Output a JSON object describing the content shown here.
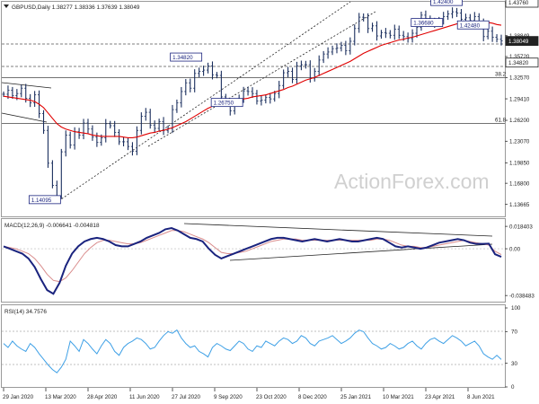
{
  "header": {
    "symbol_line": "GBPUSD,Daily  1.38277 1.38336 1.37639 1.38049"
  },
  "watermark": "ActionForex.com",
  "colors": {
    "bars": "#1b2f5e",
    "price_line": "#5f7f93",
    "ma": "#e00000",
    "macd": "#1a237e",
    "signal": "#d98c8c",
    "rsi": "#3ea0e6",
    "fib": "#444444"
  },
  "chart_data": [
    {
      "type": "line",
      "title": "GBPUSD,Daily",
      "ylim": [
        1.12,
        1.4376
      ],
      "y_ticks": [
        "1.43760",
        "1.38849",
        "1.35720",
        "1.32570",
        "1.29410",
        "1.26200",
        "1.23070",
        "1.19850",
        "1.16800",
        "1.13665"
      ],
      "current_price": "1.38049",
      "price_box_levels": [
        "1.43760",
        "1.38049",
        "1.34820"
      ],
      "x_tick_labels": [
        "29 Jan 2020",
        "13 Mar 2020",
        "28 Apr 2020",
        "11 Jun 2020",
        "27 Jul 2020",
        "9 Sep 2020",
        "23 Oct 2020",
        "8 Dec 2020",
        "25 Jan 2021",
        "10 Mar 2021",
        "23 Apr 2021",
        "8 Jun 2021"
      ],
      "annotations": [
        {
          "label": "1.42400"
        },
        {
          "label": "1.42480"
        },
        {
          "label": "1.34820"
        },
        {
          "label": "1.36680"
        },
        {
          "label": "1.26750"
        },
        {
          "label": "1.14095"
        }
      ],
      "fib_labels": [
        "38.2",
        "61.8"
      ],
      "series": [
        {
          "values": [
            1.301,
            1.307,
            1.299,
            1.302,
            1.31,
            1.295,
            1.288,
            1.3,
            1.272,
            1.247,
            1.198,
            1.165,
            1.149,
            1.215,
            1.24,
            1.225,
            1.245,
            1.24,
            1.258,
            1.249,
            1.237,
            1.229,
            1.236,
            1.257,
            1.254,
            1.244,
            1.23,
            1.23,
            1.223,
            1.216,
            1.247,
            1.268,
            1.274,
            1.255,
            1.25,
            1.26,
            1.247,
            1.25,
            1.278,
            1.288,
            1.305,
            1.318,
            1.31,
            1.332,
            1.335,
            1.337,
            1.343,
            1.33,
            1.329,
            1.297,
            1.287,
            1.276,
            1.289,
            1.294,
            1.306,
            1.305,
            1.302,
            1.291,
            1.292,
            1.296,
            1.294,
            1.302,
            1.314,
            1.333,
            1.335,
            1.323,
            1.343,
            1.345,
            1.345,
            1.325,
            1.335,
            1.352,
            1.361,
            1.364,
            1.369,
            1.37,
            1.374,
            1.366,
            1.38,
            1.399,
            1.416,
            1.415,
            1.399,
            1.403,
            1.388,
            1.393,
            1.392,
            1.389,
            1.398,
            1.389,
            1.387,
            1.384,
            1.392,
            1.401,
            1.419,
            1.414,
            1.407,
            1.408,
            1.412,
            1.417,
            1.421,
            1.424,
            1.422,
            1.413,
            1.415,
            1.411,
            1.417,
            1.407,
            1.387,
            1.395,
            1.386,
            1.383,
            1.3805
          ]
        },
        {
          "name": "MA",
          "values": [
            1.298,
            1.297,
            1.296,
            1.295,
            1.294,
            1.293,
            1.292,
            1.29,
            1.286,
            1.281,
            1.273,
            1.265,
            1.257,
            1.252,
            1.249,
            1.247,
            1.245,
            1.244,
            1.243,
            1.242,
            1.24,
            1.239,
            1.238,
            1.238,
            1.238,
            1.238,
            1.238,
            1.237,
            1.236,
            1.236,
            1.237,
            1.239,
            1.241,
            1.243,
            1.244,
            1.246,
            1.247,
            1.249,
            1.251,
            1.254,
            1.257,
            1.26,
            1.264,
            1.268,
            1.272,
            1.276,
            1.28,
            1.283,
            1.286,
            1.288,
            1.289,
            1.29,
            1.291,
            1.292,
            1.294,
            1.295,
            1.297,
            1.298,
            1.299,
            1.3,
            1.302,
            1.304,
            1.306,
            1.308,
            1.311,
            1.313,
            1.316,
            1.319,
            1.322,
            1.324,
            1.326,
            1.329,
            1.332,
            1.335,
            1.338,
            1.341,
            1.344,
            1.347,
            1.35,
            1.354,
            1.358,
            1.362,
            1.365,
            1.368,
            1.371,
            1.374,
            1.376,
            1.378,
            1.38,
            1.382,
            1.383,
            1.385,
            1.386,
            1.388,
            1.39,
            1.392,
            1.394,
            1.396,
            1.398,
            1.4,
            1.402,
            1.404,
            1.406,
            1.407,
            1.408,
            1.409,
            1.41,
            1.41,
            1.409,
            1.408,
            1.407,
            1.405,
            1.404
          ]
        }
      ]
    },
    {
      "type": "line",
      "title": "MACD(12,26,9) -0.006641 -0.004818",
      "ylim": [
        -0.042,
        0.02
      ],
      "y_ticks": [
        "0.018403",
        "0.00",
        "-0.038483"
      ],
      "series": [
        {
          "values": [
            0.002,
            0.0,
            -0.002,
            -0.004,
            -0.008,
            -0.015,
            -0.025,
            -0.034,
            -0.037,
            -0.028,
            -0.014,
            -0.004,
            0.002,
            0.006,
            0.008,
            0.009,
            0.008,
            0.006,
            0.003,
            0.002,
            0.002,
            0.004,
            0.006,
            0.009,
            0.011,
            0.013,
            0.016,
            0.017,
            0.015,
            0.012,
            0.009,
            0.008,
            0.006,
            0.0,
            -0.005,
            -0.008,
            -0.006,
            -0.004,
            -0.002,
            0.0,
            0.002,
            0.004,
            0.006,
            0.008,
            0.009,
            0.009,
            0.008,
            0.007,
            0.006,
            0.007,
            0.008,
            0.007,
            0.006,
            0.007,
            0.008,
            0.007,
            0.006,
            0.006,
            0.007,
            0.008,
            0.009,
            0.008,
            0.005,
            0.002,
            0.001,
            0.002,
            0.001,
            0.0,
            0.001,
            0.003,
            0.005,
            0.006,
            0.007,
            0.008,
            0.007,
            0.005,
            0.004,
            0.004,
            0.0042,
            -0.0045,
            -0.0066
          ]
        },
        {
          "values": [
            0.002,
            0.001,
            0.0,
            -0.002,
            -0.004,
            -0.008,
            -0.014,
            -0.021,
            -0.026,
            -0.027,
            -0.024,
            -0.018,
            -0.011,
            -0.004,
            0.001,
            0.005,
            0.007,
            0.007,
            0.006,
            0.005,
            0.004,
            0.004,
            0.005,
            0.007,
            0.009,
            0.011,
            0.013,
            0.015,
            0.015,
            0.014,
            0.012,
            0.01,
            0.008,
            0.005,
            0.001,
            -0.003,
            -0.004,
            -0.004,
            -0.003,
            -0.002,
            0.0,
            0.002,
            0.004,
            0.006,
            0.007,
            0.008,
            0.008,
            0.008,
            0.007,
            0.007,
            0.007,
            0.007,
            0.007,
            0.007,
            0.007,
            0.007,
            0.007,
            0.007,
            0.007,
            0.007,
            0.008,
            0.008,
            0.007,
            0.005,
            0.003,
            0.002,
            0.002,
            0.001,
            0.001,
            0.002,
            0.003,
            0.004,
            0.005,
            0.006,
            0.007,
            0.006,
            0.005,
            0.004,
            0.003,
            -0.002,
            -0.0048
          ]
        }
      ]
    },
    {
      "type": "line",
      "title": "RSI(14) 34.7576",
      "ylim": [
        0,
        100
      ],
      "y_ticks": [
        "100",
        "70",
        "30",
        "0"
      ],
      "series": [
        {
          "values": [
            55,
            50,
            58,
            52,
            48,
            45,
            55,
            50,
            42,
            35,
            28,
            22,
            18,
            25,
            35,
            58,
            52,
            45,
            60,
            55,
            48,
            42,
            52,
            60,
            55,
            45,
            40,
            50,
            55,
            58,
            62,
            60,
            55,
            48,
            50,
            58,
            65,
            70,
            68,
            72,
            62,
            55,
            50,
            52,
            45,
            42,
            38,
            50,
            55,
            52,
            48,
            46,
            52,
            58,
            55,
            48,
            45,
            52,
            50,
            58,
            55,
            52,
            58,
            62,
            60,
            55,
            58,
            65,
            62,
            55,
            52,
            58,
            60,
            62,
            65,
            60,
            55,
            58,
            62,
            68,
            72,
            70,
            62,
            55,
            52,
            48,
            50,
            55,
            52,
            48,
            50,
            55,
            58,
            52,
            48,
            55,
            60,
            62,
            58,
            55,
            60,
            65,
            62,
            58,
            52,
            55,
            58,
            52,
            42,
            38,
            35,
            40,
            34.76
          ]
        }
      ]
    }
  ]
}
